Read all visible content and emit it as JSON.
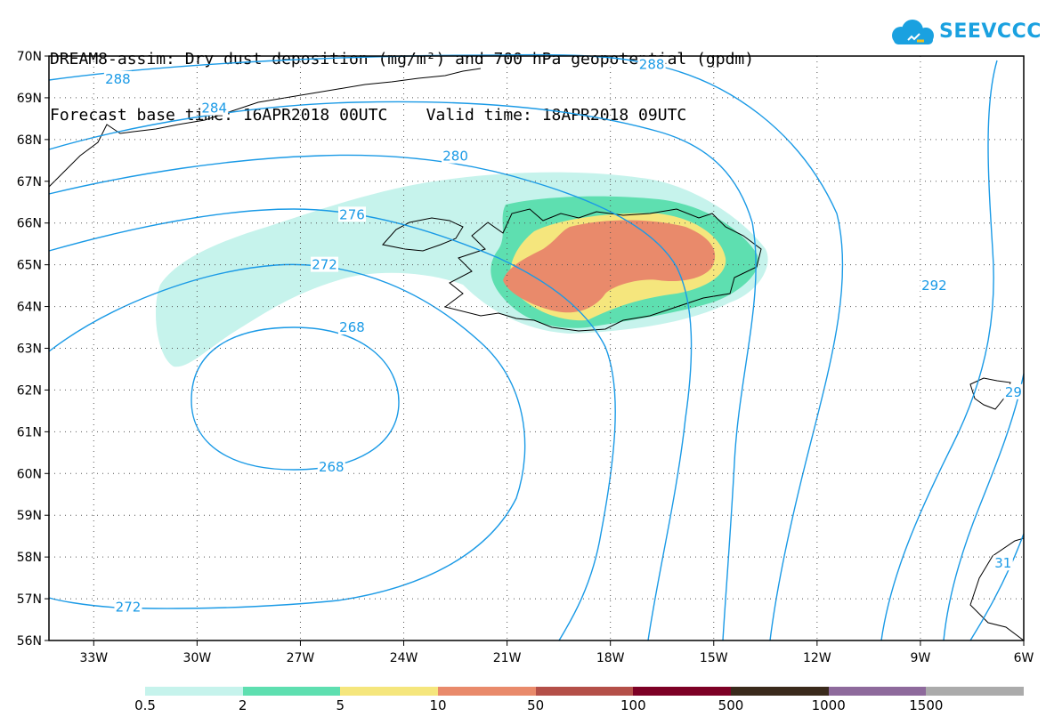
{
  "title": {
    "line1": "DREAM8-assim: Dry dust deposition (mg/m²) and 700 hPa geopotential (gpdm)",
    "line2": "Forecast base time: 16APR2018 00UTC    Valid time: 18APR2018 09UTC"
  },
  "logo": {
    "text": "SEEVCCC",
    "icon": "cloud-icon",
    "color": "#1aa1e0"
  },
  "map": {
    "lat_labels": [
      "70N",
      "69N",
      "68N",
      "67N",
      "66N",
      "65N",
      "64N",
      "63N",
      "62N",
      "61N",
      "60N",
      "59N",
      "58N",
      "57N",
      "56N"
    ],
    "lon_labels": [
      "33W",
      "30W",
      "27W",
      "24W",
      "21W",
      "18W",
      "15W",
      "12W",
      "9W",
      "6W"
    ],
    "lat_range": [
      56,
      70
    ],
    "lon_range": [
      -34.3,
      -6
    ],
    "contour_color": "#1a9ae6",
    "coastline_color": "#000000",
    "contour_labels": [
      {
        "text": "288",
        "lat": 69.45,
        "lon": -32.3
      },
      {
        "text": "288",
        "lat": 69.8,
        "lon": -16.8
      },
      {
        "text": "284",
        "lat": 68.75,
        "lon": -29.5
      },
      {
        "text": "280",
        "lat": 67.6,
        "lon": -22.5
      },
      {
        "text": "276",
        "lat": 66.2,
        "lon": -25.5
      },
      {
        "text": "272",
        "lat": 65.0,
        "lon": -26.3
      },
      {
        "text": "268",
        "lat": 63.5,
        "lon": -25.5
      },
      {
        "text": "268",
        "lat": 60.15,
        "lon": -26.1
      },
      {
        "text": "272",
        "lat": 56.8,
        "lon": -32.0
      },
      {
        "text": "292",
        "lat": 64.5,
        "lon": -8.6
      },
      {
        "text": "29",
        "lat": 61.95,
        "lon": -6.3
      },
      {
        "text": "31",
        "lat": 57.85,
        "lon": -6.6
      }
    ]
  },
  "colorbar": {
    "labels": [
      "0.5",
      "2",
      "5",
      "10",
      "50",
      "100",
      "500",
      "1000",
      "1500"
    ],
    "colors": [
      "#c6f3ec",
      "#5edfb0",
      "#f5e67d",
      "#e98a6b",
      "#b44f48",
      "#7d0025",
      "#3a2a1c",
      "#8e6a9c",
      "#ababab"
    ]
  }
}
